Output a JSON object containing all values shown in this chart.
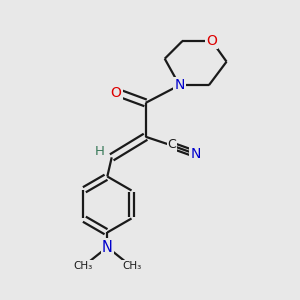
{
  "bg_color": "#e8e8e8",
  "bond_color": "#1a1a1a",
  "atom_colors": {
    "O": "#dd0000",
    "N": "#0000cc",
    "C": "#1a1a1a",
    "H": "#3a7a5a"
  },
  "fig_size": [
    3.0,
    3.0
  ],
  "dpi": 100,
  "lw": 1.6
}
